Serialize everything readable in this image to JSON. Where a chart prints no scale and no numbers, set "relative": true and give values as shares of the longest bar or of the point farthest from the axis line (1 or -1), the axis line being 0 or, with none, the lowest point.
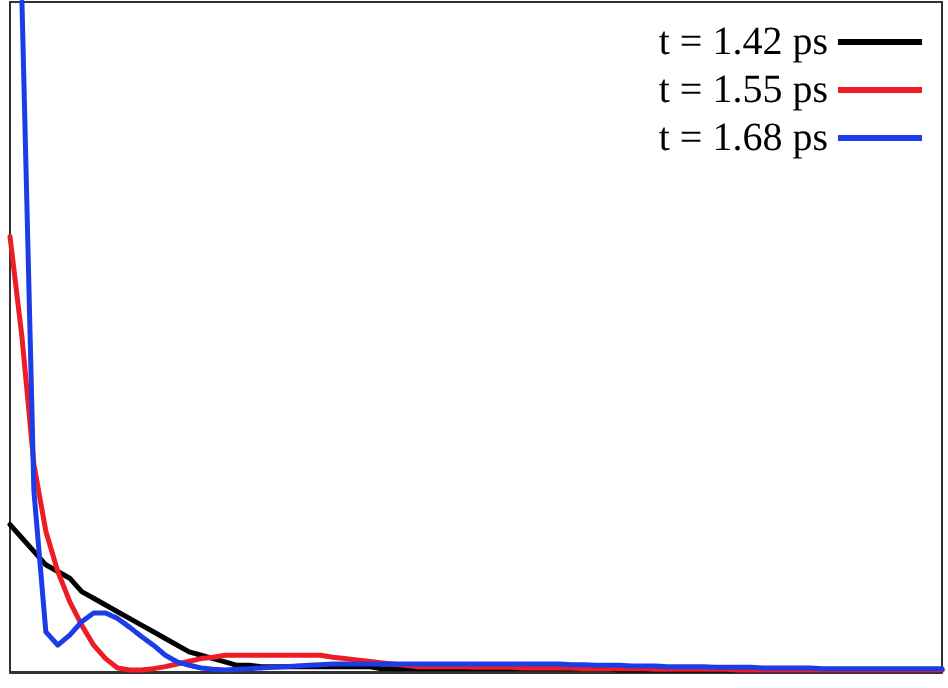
{
  "chart_data": {
    "type": "line",
    "relative": true,
    "legend": "top right",
    "grid": false,
    "marker": "none",
    "line_style": "solid",
    "categories": [
      null,
      null,
      null,
      null,
      null,
      null,
      null,
      null,
      null,
      null,
      null,
      null,
      null,
      null,
      null,
      null,
      null,
      null,
      null,
      null,
      null,
      null,
      null,
      null,
      null,
      null,
      null,
      null,
      null,
      null,
      null,
      null,
      null,
      null,
      null,
      null,
      null,
      null,
      null,
      null,
      null,
      null,
      null,
      null,
      null,
      null,
      null,
      null,
      null,
      null,
      null,
      null,
      null,
      null,
      null,
      null,
      null,
      null,
      null,
      null,
      null,
      null,
      null,
      null,
      null,
      null,
      null,
      null,
      null,
      null,
      null,
      null,
      null,
      null,
      null,
      null,
      null,
      null,
      null
    ],
    "series": [
      {
        "name": "t = 1.42 ps",
        "color": "#000000",
        "values": [
          0.22,
          0.2,
          0.18,
          0.16,
          0.15,
          0.14,
          0.12,
          0.11,
          0.1,
          0.09,
          0.08,
          0.07,
          0.06,
          0.05,
          0.04,
          0.03,
          0.025,
          0.02,
          0.015,
          0.01,
          0.01,
          0.008,
          0.008,
          0.008,
          0.008,
          0.008,
          0.008,
          0.008,
          0.008,
          0.008,
          0.008,
          0.005,
          0.005,
          0.005,
          0.005,
          0.005,
          0.005,
          0.005,
          0.005,
          0.005,
          0.005,
          0.005,
          0.005,
          0.005,
          0.005,
          0.005,
          0.005,
          0.005,
          0.005,
          0.005,
          0.005,
          0.003,
          0.003,
          0.003,
          0.003,
          0.003,
          0.003,
          0.003,
          0.003,
          0.003,
          0.003,
          0.003,
          0.003,
          0.003,
          0.003,
          0.003,
          0.003,
          0.003,
          0.003,
          0.003,
          0.003,
          0.003,
          0.003,
          0.003,
          0.003,
          0.003,
          0.003,
          0.003,
          0.003
        ]
      },
      {
        "name": "t = 1.55 ps",
        "color": "#ee1c25",
        "values": [
          0.65,
          0.5,
          0.31,
          0.21,
          0.15,
          0.105,
          0.07,
          0.04,
          0.02,
          0.006,
          0.003,
          0.003,
          0.005,
          0.008,
          0.012,
          0.016,
          0.02,
          0.022,
          0.025,
          0.025,
          0.025,
          0.025,
          0.025,
          0.025,
          0.025,
          0.025,
          0.025,
          0.022,
          0.02,
          0.018,
          0.016,
          0.014,
          0.012,
          0.01,
          0.008,
          0.008,
          0.008,
          0.008,
          0.008,
          0.007,
          0.007,
          0.007,
          0.007,
          0.006,
          0.006,
          0.006,
          0.006,
          0.006,
          0.005,
          0.005,
          0.005,
          0.005,
          0.005,
          0.005,
          0.004,
          0.004,
          0.004,
          0.004,
          0.004,
          0.004,
          0.004,
          0.003,
          0.003,
          0.003,
          0.003,
          0.003,
          0.003,
          0.003,
          0.003,
          0.003,
          0.003,
          0.003,
          0.003,
          0.003,
          0.003,
          0.003,
          0.003,
          0.003,
          0.003
        ]
      },
      {
        "name": "t = 1.68 ps",
        "color": "#1c3ce8",
        "values": [
          null,
          1,
          0.27,
          0.06,
          0.04,
          0.055,
          0.075,
          0.088,
          0.088,
          0.08,
          0.067,
          0.053,
          0.04,
          0.025,
          0.015,
          0.01,
          0.006,
          0.004,
          0.003,
          0.004,
          0.005,
          0.006,
          0.007,
          0.008,
          0.009,
          0.01,
          0.011,
          0.012,
          0.012,
          0.012,
          0.012,
          0.012,
          0.012,
          0.012,
          0.012,
          0.012,
          0.012,
          0.012,
          0.012,
          0.012,
          0.012,
          0.012,
          0.012,
          0.012,
          0.012,
          0.012,
          0.012,
          0.011,
          0.011,
          0.01,
          0.01,
          0.01,
          0.009,
          0.009,
          0.009,
          0.008,
          0.008,
          0.008,
          0.008,
          0.007,
          0.007,
          0.007,
          0.007,
          0.006,
          0.006,
          0.006,
          0.006,
          0.006,
          0.005,
          0.005,
          0.005,
          0.005,
          0.005,
          0.005,
          0.005,
          0.005,
          0.005,
          0.005,
          0.005
        ]
      }
    ]
  }
}
